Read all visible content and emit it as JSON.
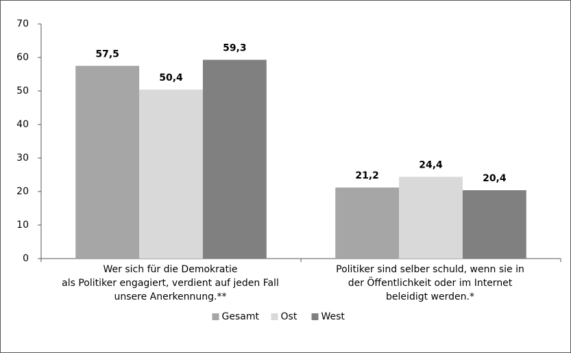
{
  "chart_data": {
    "type": "bar",
    "categories": [
      "Wer sich für die Demokratie\nals Politiker engagiert, verdient auf jeden Fall\nunsere Anerkennung.**",
      "Politiker sind selber schuld, wenn sie in\nder Öffentlichkeit oder im Internet\nbeleidigt werden.*"
    ],
    "series": [
      {
        "name": "Gesamt",
        "color": "#a6a6a6",
        "values": [
          57.5,
          21.2
        ],
        "value_labels": [
          "57,5",
          "21,2"
        ]
      },
      {
        "name": "Ost",
        "color": "#d9d9d9",
        "values": [
          50.4,
          24.4
        ],
        "value_labels": [
          "50,4",
          "24,4"
        ]
      },
      {
        "name": "West",
        "color": "#808080",
        "values": [
          59.3,
          20.4
        ],
        "value_labels": [
          "59,3",
          "20,4"
        ]
      }
    ],
    "ylim": [
      0,
      70
    ],
    "yticks": [
      0,
      10,
      20,
      30,
      40,
      50,
      60,
      70
    ],
    "grid": false,
    "legend": "bottom"
  }
}
